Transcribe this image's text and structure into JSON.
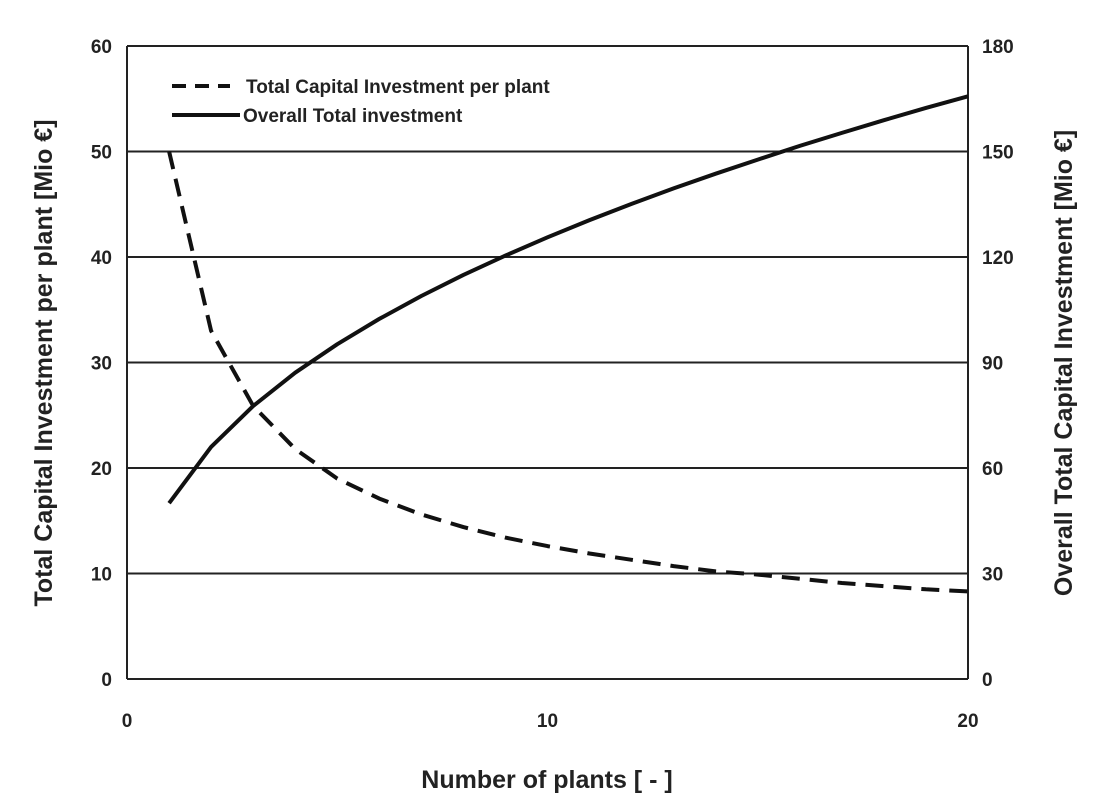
{
  "chart_data": {
    "type": "line",
    "title": "",
    "xlabel": "Number of plants [ - ]",
    "ylabel": "Total Capital Investment per plant [Mio €]",
    "y2label": "Overall Total Capital Investment [Mio €]",
    "xlim": [
      0,
      20
    ],
    "ylim": [
      0,
      60
    ],
    "y2lim": [
      0,
      180
    ],
    "xticks": [
      "0",
      "10",
      "20"
    ],
    "yticks": [
      "0",
      "10",
      "20",
      "30",
      "40",
      "50",
      "60"
    ],
    "y2ticks": [
      "0",
      "30",
      "60",
      "90",
      "120",
      "150",
      "180"
    ],
    "grid": "horizontal",
    "legend_position": "top-left",
    "x": [
      1,
      2,
      3,
      4,
      5,
      6,
      7,
      8,
      9,
      10,
      11,
      12,
      13,
      14,
      15,
      16,
      17,
      18,
      19,
      20
    ],
    "series": [
      {
        "name": "Total Capital Investment per plant",
        "axis": "left",
        "style": "dashed",
        "values": [
          50,
          33.0,
          25.9,
          21.8,
          19.0,
          17.1,
          15.6,
          14.4,
          13.4,
          12.6,
          11.9,
          11.3,
          10.7,
          10.2,
          9.9,
          9.5,
          9.1,
          8.8,
          8.5,
          8.3
        ]
      },
      {
        "name": "Overall Total investment",
        "axis": "right",
        "style": "solid",
        "values": [
          50,
          66.0,
          77.6,
          87.1,
          95.2,
          102.4,
          108.9,
          114.9,
          120.4,
          125.6,
          130.5,
          135.1,
          139.5,
          143.7,
          147.7,
          151.6,
          155.3,
          158.9,
          162.4,
          165.7
        ]
      }
    ]
  }
}
